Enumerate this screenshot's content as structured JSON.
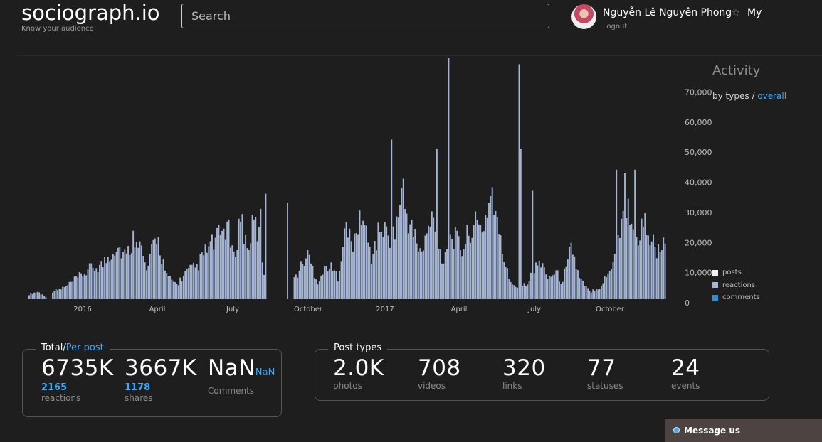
{
  "brand": {
    "logo": "sociograph.io",
    "tagline": "Know your audience"
  },
  "search": {
    "placeholder": "Search",
    "value": ""
  },
  "user": {
    "name": "Nguyễn Lê Nguyên Phong",
    "star": "☆",
    "my_label": "My",
    "logout_label": "Logout"
  },
  "activity": {
    "title": "Activity",
    "by_types_label": "by types",
    "separator": " / ",
    "overall_label": "overall",
    "legend": [
      {
        "label": "posts",
        "color": "#f2f2f2"
      },
      {
        "label": "reactions",
        "color": "#a4b5d6"
      },
      {
        "label": "comments",
        "color": "#2f8fd6"
      }
    ]
  },
  "chart_data": {
    "type": "bar",
    "x_tick_labels": [
      "2016",
      "April",
      "July",
      "October",
      "2017",
      "April",
      "July",
      "October"
    ],
    "y_tick_labels": [
      "0",
      "10,000",
      "20,000",
      "30,000",
      "40,000",
      "50,000",
      "60,000",
      "70,000"
    ],
    "y_ticks": [
      0,
      10000,
      20000,
      30000,
      40000,
      50000,
      60000,
      70000
    ],
    "ylim": [
      0,
      80000
    ],
    "grid": false,
    "legend_position": "right",
    "series": [
      {
        "name": "reactions",
        "color": "#a4b5d6",
        "segments": [
          {
            "from_index": 0,
            "peaks": [
              [
                0,
                2000
              ],
              [
                5,
                3000
              ],
              [
                10,
                1000
              ]
            ]
          },
          {
            "from_index": 14,
            "peaks": [
              [
                0,
                3000
              ],
              [
                8,
                5000
              ],
              [
                16,
                9000
              ],
              [
                22,
                12000
              ],
              [
                30,
                14000
              ],
              [
                38,
                22000
              ],
              [
                44,
                17000
              ],
              [
                50,
                28000
              ],
              [
                56,
                11000
              ],
              [
                62,
                26000
              ],
              [
                68,
                9000
              ],
              [
                74,
                6000
              ],
              [
                80,
                11000
              ],
              [
                86,
                13000
              ],
              [
                92,
                20000
              ],
              [
                98,
                24000
              ],
              [
                104,
                30000
              ],
              [
                108,
                16000
              ],
              [
                112,
                34000
              ],
              [
                116,
                20000
              ],
              [
                120,
                31000
              ],
              [
                124,
                24000
              ],
              [
                126,
                10000
              ]
            ]
          },
          {
            "from_index": 158,
            "peaks": [
              [
                0,
                8000
              ],
              [
                8,
                18000
              ],
              [
                14,
                7000
              ],
              [
                20,
                14000
              ],
              [
                26,
                9000
              ],
              [
                30,
                28000
              ],
              [
                36,
                22000
              ],
              [
                40,
                35000
              ],
              [
                46,
                17000
              ],
              [
                52,
                30000
              ],
              [
                58,
                22000
              ],
              [
                64,
                41000
              ],
              [
                70,
                28000
              ],
              [
                76,
                18000
              ],
              [
                82,
                33000
              ],
              [
                88,
                16000
              ],
              [
                94,
                26000
              ],
              [
                100,
                20000
              ],
              [
                106,
                30000
              ],
              [
                112,
                28000
              ],
              [
                118,
                44000
              ],
              [
                122,
                25000
              ],
              [
                128,
                8000
              ],
              [
                134,
                4000
              ],
              [
                140,
                8000
              ],
              [
                146,
                15000
              ],
              [
                152,
                9000
              ],
              [
                156,
                11000
              ],
              [
                160,
                6000
              ],
              [
                164,
                24000
              ],
              [
                170,
                8000
              ],
              [
                176,
                3000
              ],
              [
                182,
                5000
              ],
              [
                188,
                11000
              ],
              [
                194,
                28000
              ],
              [
                198,
                39000
              ],
              [
                204,
                25000
              ],
              [
                210,
                31000
              ],
              [
                216,
                18000
              ],
              [
                222,
                23000
              ],
              [
                226,
                20000
              ]
            ]
          }
        ]
      }
    ],
    "spikes": [
      {
        "index": 138,
        "value": 30000
      },
      {
        "index": 141,
        "value": 35000
      },
      {
        "index": 154,
        "value": 32000
      },
      {
        "index": 216,
        "value": 53000
      },
      {
        "index": 223,
        "value": 40000
      },
      {
        "index": 243,
        "value": 50000
      },
      {
        "index": 250,
        "value": 80000
      },
      {
        "index": 292,
        "value": 78000
      },
      {
        "index": 293,
        "value": 50000
      },
      {
        "index": 300,
        "value": 36000
      },
      {
        "index": 350,
        "value": 43000
      },
      {
        "index": 355,
        "value": 42000
      },
      {
        "index": 361,
        "value": 43000
      }
    ],
    "total_bars": 380
  },
  "totals": {
    "title": "Total",
    "per_post_label": "Per post",
    "reactions": {
      "value": "6735K",
      "per_post": "2165",
      "label": "reactions"
    },
    "shares": {
      "value": "3667K",
      "per_post": "1178",
      "label": "shares"
    },
    "comments": {
      "value": "NaN",
      "per_post": "NaN",
      "label": "Comments"
    }
  },
  "post_types": {
    "title": "Post types",
    "items": [
      {
        "value": "2.0K",
        "label": "photos"
      },
      {
        "value": "708",
        "label": "videos"
      },
      {
        "value": "320",
        "label": "links"
      },
      {
        "value": "77",
        "label": "statuses"
      },
      {
        "value": "24",
        "label": "events"
      }
    ]
  },
  "message": {
    "label": "Message us"
  }
}
